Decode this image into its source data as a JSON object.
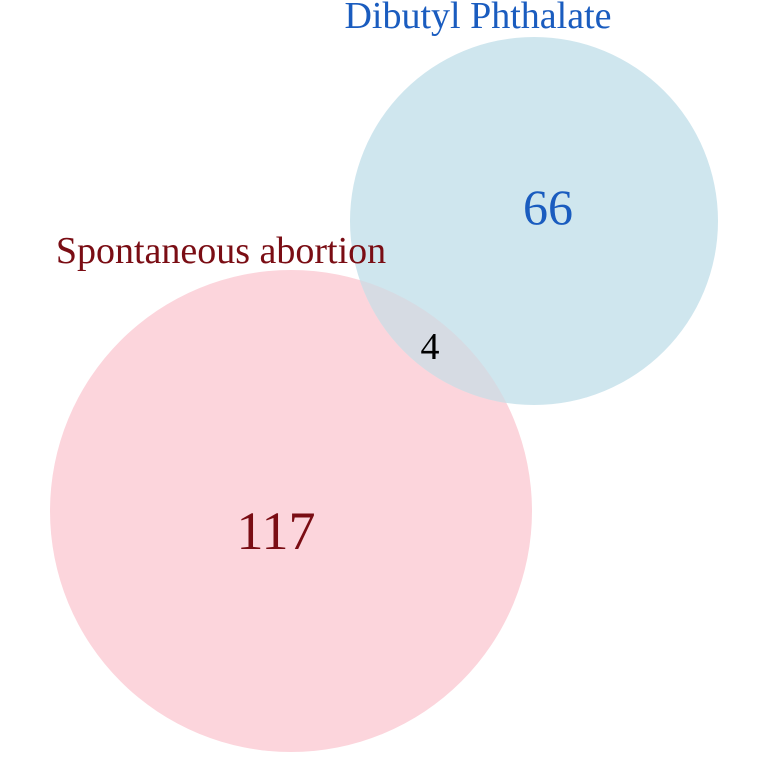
{
  "venn": {
    "set_a": {
      "label": "Spontaneous abortion",
      "only_count": "117",
      "fill_color": "#fcd5dc",
      "text_color": "#7a0d14"
    },
    "set_b": {
      "label": "Dibutyl Phthalate",
      "only_count": "66",
      "fill_color": "#cfe6ee",
      "text_color": "#1a5cbf"
    },
    "intersection": {
      "count": "4",
      "fill_color": "#d6dbe3",
      "text_color": "#000000"
    }
  }
}
